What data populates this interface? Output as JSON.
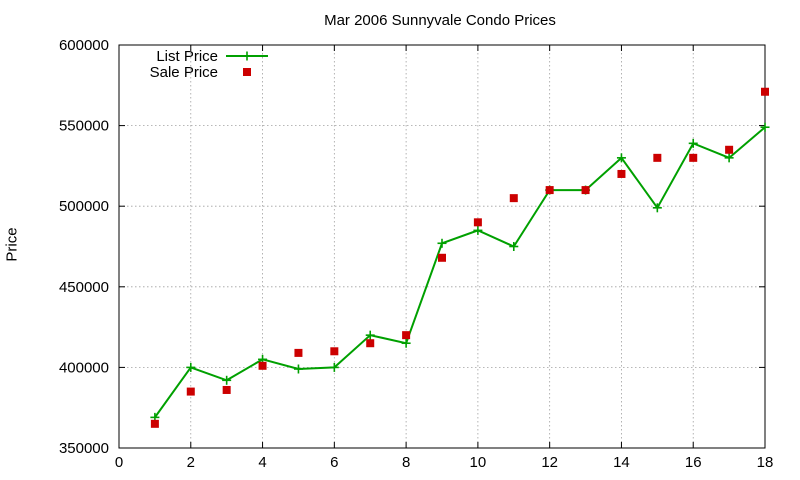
{
  "chart_data": {
    "type": "line",
    "title": "Mar 2006 Sunnyvale Condo Prices",
    "xlabel": "",
    "ylabel": "Price",
    "xlim": [
      0,
      18
    ],
    "ylim": [
      350000,
      600000
    ],
    "xticks": [
      0,
      2,
      4,
      6,
      8,
      10,
      12,
      14,
      16,
      18
    ],
    "yticks": [
      350000,
      400000,
      450000,
      500000,
      550000,
      600000
    ],
    "grid": true,
    "legend": "top-left",
    "series": [
      {
        "name": "List Price",
        "type": "line",
        "marker": "plus",
        "color": "#00a000",
        "x": [
          1,
          2,
          3,
          4,
          5,
          6,
          7,
          8,
          9,
          10,
          11,
          12,
          13,
          14,
          15,
          16,
          17,
          18
        ],
        "y": [
          369000,
          400000,
          392000,
          405000,
          399000,
          400000,
          420000,
          415000,
          477000,
          485000,
          475000,
          510000,
          510000,
          530000,
          499000,
          539000,
          530000,
          549000
        ]
      },
      {
        "name": "Sale Price",
        "type": "scatter",
        "marker": "square",
        "color": "#cc0000",
        "x": [
          1,
          2,
          3,
          4,
          5,
          6,
          7,
          8,
          9,
          10,
          11,
          12,
          13,
          14,
          15,
          16,
          17,
          18
        ],
        "y": [
          365000,
          385000,
          386000,
          401000,
          409000,
          410000,
          415000,
          420000,
          468000,
          490000,
          505000,
          510000,
          510000,
          520000,
          530000,
          530000,
          535000,
          571000
        ]
      }
    ]
  }
}
